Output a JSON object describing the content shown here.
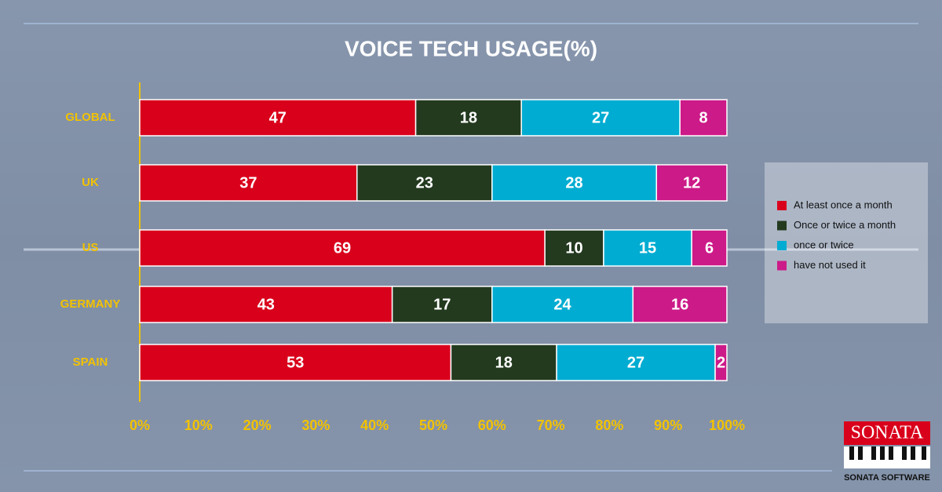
{
  "chart_data": {
    "type": "stacked-bar-horizontal",
    "title": "VOICE TECH USAGE(%)",
    "categories": [
      "GLOBAL",
      "UK",
      "US",
      "GERMANY",
      "SPAIN"
    ],
    "series": [
      {
        "name": "At least once a month",
        "color": "#d9001b",
        "values": [
          47,
          37,
          69,
          43,
          53
        ]
      },
      {
        "name": "Once or twice a month",
        "color": "#233a1f",
        "values": [
          18,
          23,
          10,
          17,
          18
        ]
      },
      {
        "name": "once or twice",
        "color": "#00acd1",
        "values": [
          27,
          28,
          15,
          24,
          27
        ]
      },
      {
        "name": "have not used it",
        "color": "#cc1a88",
        "values": [
          8,
          12,
          6,
          16,
          2
        ]
      }
    ],
    "xlim": [
      0,
      100
    ],
    "xticks": [
      {
        "value": 0,
        "label": "0%"
      },
      {
        "value": 10,
        "label": "10%"
      },
      {
        "value": 20,
        "label": "20%"
      },
      {
        "value": 30,
        "label": "30%"
      },
      {
        "value": 40,
        "label": "40%"
      },
      {
        "value": 50,
        "label": "50%"
      },
      {
        "value": 60,
        "label": "60%"
      },
      {
        "value": 70,
        "label": "70%"
      },
      {
        "value": 80,
        "label": "80%"
      },
      {
        "value": 90,
        "label": "90%"
      },
      {
        "value": 100,
        "label": "100%"
      }
    ],
    "grid": false,
    "legend": "right"
  },
  "logo": {
    "name": "SONATA",
    "caption": "SONATA SOFTWARE"
  }
}
